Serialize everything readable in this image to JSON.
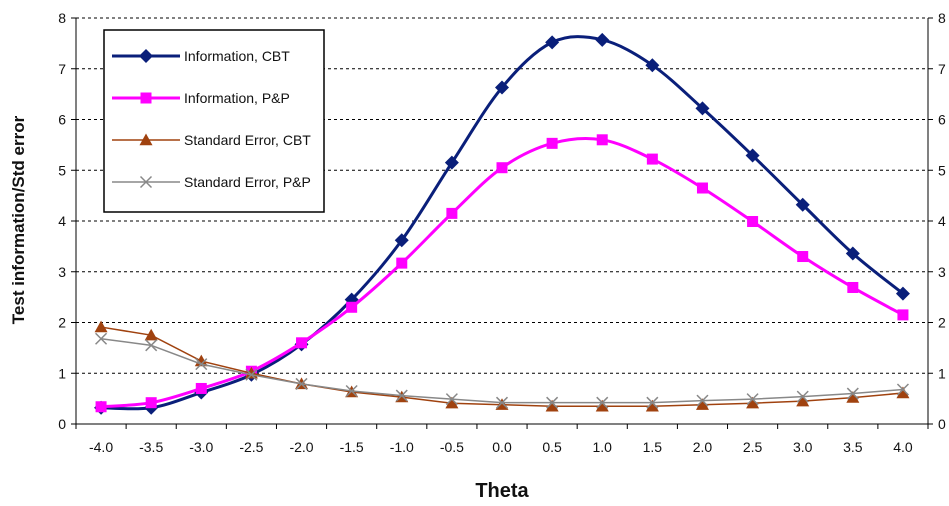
{
  "chart_data": {
    "type": "line",
    "title": "",
    "xlabel": "Theta",
    "ylabel": "Test information/Std error",
    "x": [
      -4.0,
      -3.5,
      -3.0,
      -2.5,
      -2.0,
      -1.5,
      -1.0,
      -0.5,
      0.0,
      0.5,
      1.0,
      1.5,
      2.0,
      2.5,
      3.0,
      3.5,
      4.0
    ],
    "x_tick_labels": [
      "-4.0",
      "-3.5",
      "-3.0",
      "-2.5",
      "-2.0",
      "-1.5",
      "-1.0",
      "-0.5",
      "0.0",
      "0.5",
      "1.0",
      "1.5",
      "2.0",
      "2.5",
      "3.0",
      "3.5",
      "4.0"
    ],
    "ylim": [
      0,
      8
    ],
    "y_ticks": [
      0,
      1,
      2,
      3,
      4,
      5,
      6,
      7,
      8
    ],
    "y_tick_labels": [
      "0",
      "1",
      "2",
      "3",
      "4",
      "5",
      "6",
      "7",
      "8"
    ],
    "y2lim": [
      0,
      8
    ],
    "y2_tick_labels": [
      "0",
      "1",
      "2",
      "3",
      "4",
      "5",
      "6",
      "7",
      "8"
    ],
    "grid": "horizontal dashed",
    "legend_position": "top-left",
    "series": [
      {
        "name": "Information, CBT",
        "color": "#0a1f7a",
        "marker": "diamond",
        "line_width": 3,
        "values": [
          0.32,
          0.32,
          0.62,
          0.97,
          1.57,
          2.45,
          3.62,
          5.15,
          6.63,
          7.52,
          7.57,
          7.07,
          6.22,
          5.29,
          4.32,
          3.36,
          2.57
        ]
      },
      {
        "name": "Information, P&P",
        "color": "#ff00ff",
        "marker": "square",
        "line_width": 3,
        "values": [
          0.34,
          0.42,
          0.7,
          1.04,
          1.6,
          2.3,
          3.17,
          4.15,
          5.05,
          5.53,
          5.6,
          5.22,
          4.65,
          3.99,
          3.3,
          2.69,
          2.15
        ]
      },
      {
        "name": "Standard Error, CBT",
        "color": "#a0420f",
        "marker": "triangle",
        "line_width": 1.5,
        "values": [
          1.91,
          1.75,
          1.24,
          1.0,
          0.79,
          0.63,
          0.53,
          0.41,
          0.38,
          0.35,
          0.35,
          0.35,
          0.38,
          0.41,
          0.45,
          0.52,
          0.61
        ]
      },
      {
        "name": "Standard Error, P&P",
        "color": "#888888",
        "marker": "x",
        "line_width": 1.5,
        "values": [
          1.68,
          1.55,
          1.18,
          0.97,
          0.79,
          0.65,
          0.56,
          0.49,
          0.42,
          0.42,
          0.42,
          0.42,
          0.46,
          0.49,
          0.54,
          0.6,
          0.68
        ]
      }
    ]
  }
}
